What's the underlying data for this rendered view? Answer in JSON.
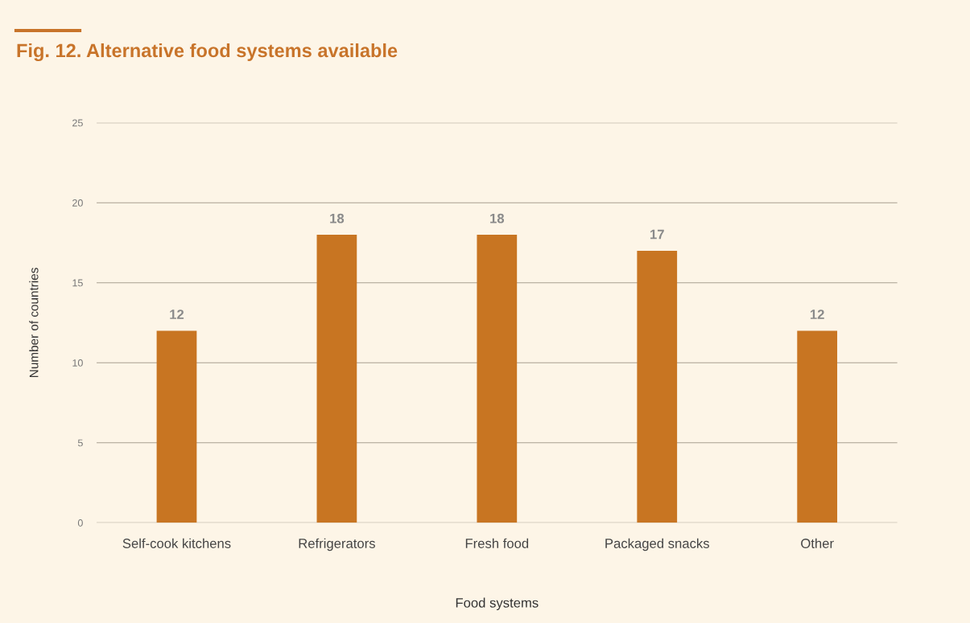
{
  "chart_data": {
    "type": "bar",
    "title": "Fig. 12. Alternative food systems available",
    "xlabel": "Food systems",
    "ylabel": "Number of countries",
    "categories": [
      "Self-cook kitchens",
      "Refrigerators",
      "Fresh food",
      "Packaged snacks",
      "Other"
    ],
    "values": [
      12,
      18,
      18,
      17,
      12
    ],
    "color": "#c87522",
    "ylim": [
      0,
      25
    ],
    "yticks": [
      0,
      5,
      10,
      15,
      20,
      25
    ],
    "grid": "y",
    "data_labels": true
  }
}
